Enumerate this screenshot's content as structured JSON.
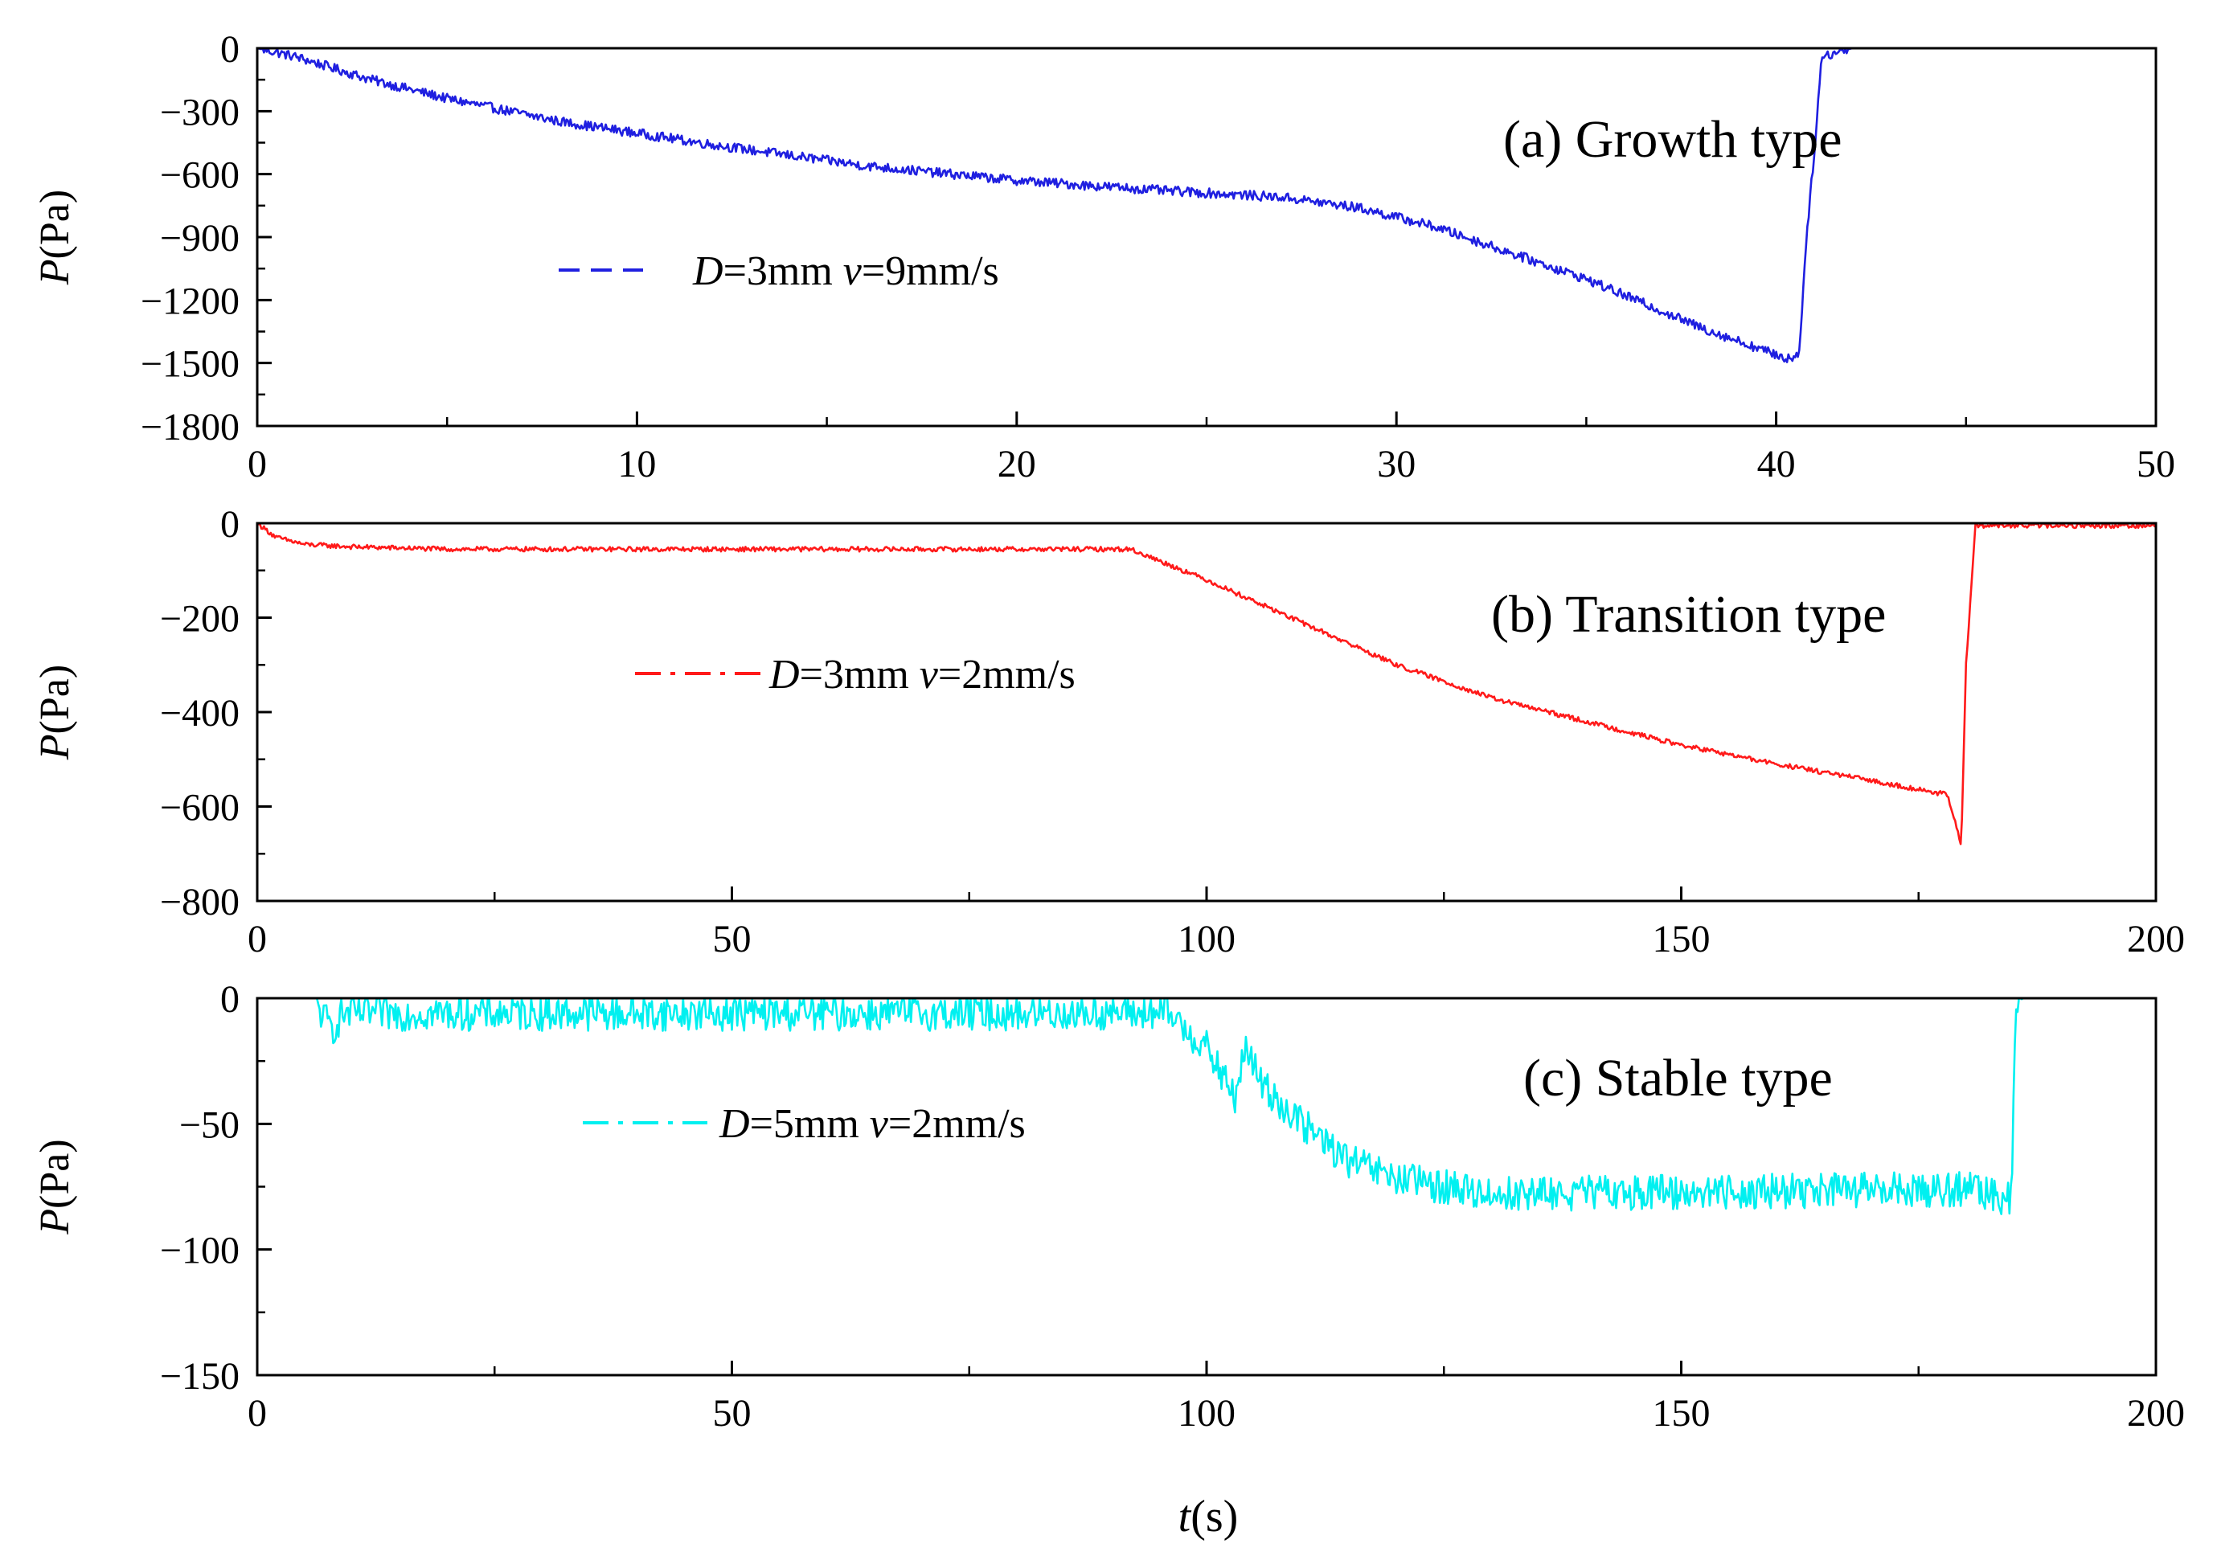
{
  "figure": {
    "xlabel_italic": "t",
    "xlabel_unit": "(s)"
  },
  "chart_data": [
    {
      "type": "line",
      "panel": "a",
      "title": "(a) Growth type",
      "xlabel": "",
      "ylabel_italic": "P",
      "ylabel_unit": "(Pa)",
      "xlim": [
        0,
        50
      ],
      "ylim": [
        -1800,
        0
      ],
      "xticks": [
        0,
        10,
        20,
        30,
        40,
        50
      ],
      "xticks_minor": [
        5,
        15,
        25,
        35,
        45
      ],
      "xtick_labels": [
        "0",
        "10",
        "20",
        "30",
        "40",
        "50"
      ],
      "yticks": [
        0,
        -300,
        -600,
        -900,
        -1200,
        -1500,
        -1800
      ],
      "ytick_labels": [
        "0",
        "−300",
        "−600",
        "−900",
        "−1200",
        "−1500",
        "−1800"
      ],
      "legend_placement": "left-middle",
      "series": [
        {
          "name": "D=3mm v=9mm/s",
          "legend_italic_1": "D",
          "legend_text_1": "=3mm ",
          "legend_italic_2": "v",
          "legend_text_2": "=9mm/s",
          "color": "#1f1fe0",
          "style": "dashed",
          "noise": 45,
          "x": [
            0,
            1,
            3,
            5,
            8,
            12,
            16,
            20,
            24,
            27,
            29,
            31,
            35,
            38,
            40.3,
            40.6,
            40.8,
            41.0,
            41.2,
            42,
            50
          ],
          "y": [
            0,
            -40,
            -150,
            -240,
            -350,
            -460,
            -560,
            -630,
            -680,
            -710,
            -760,
            -850,
            -1100,
            -1330,
            -1480,
            -1460,
            -900,
            -500,
            -40,
            0,
            0
          ]
        }
      ]
    },
    {
      "type": "line",
      "panel": "b",
      "title": "(b) Transition type",
      "xlabel": "",
      "ylabel_italic": "P",
      "ylabel_unit": "(Pa)",
      "xlim": [
        0,
        200
      ],
      "ylim": [
        -800,
        0
      ],
      "xticks": [
        0,
        50,
        100,
        150,
        200
      ],
      "xticks_minor": [
        25,
        75,
        125,
        175
      ],
      "xtick_labels": [
        "0",
        "50",
        "100",
        "150",
        "200"
      ],
      "yticks": [
        0,
        -200,
        -400,
        -600,
        -800
      ],
      "ytick_labels": [
        "0",
        "−200",
        "−400",
        "−600",
        "−800"
      ],
      "legend_placement": "left-middle",
      "series": [
        {
          "name": "D=3mm v=2mm/s",
          "legend_italic_1": "D",
          "legend_text_1": "=3mm ",
          "legend_italic_2": "v",
          "legend_text_2": "=2mm/s",
          "color": "#ff1a1a",
          "style": "dashdot",
          "noise": 10,
          "x": [
            0,
            2,
            5,
            10,
            20,
            40,
            60,
            80,
            92,
            100,
            110,
            120,
            130,
            140,
            150,
            160,
            170,
            178,
            179.5,
            180,
            181,
            200
          ],
          "y": [
            0,
            -30,
            -45,
            -50,
            -55,
            -55,
            -55,
            -55,
            -55,
            -120,
            -210,
            -300,
            -370,
            -420,
            -470,
            -510,
            -545,
            -575,
            -680,
            -300,
            -5,
            -5
          ]
        }
      ]
    },
    {
      "type": "line",
      "panel": "c",
      "title": "(c) Stable type",
      "xlabel": "t(s)",
      "ylabel_italic": "P",
      "ylabel_unit": "(Pa)",
      "xlim": [
        0,
        200
      ],
      "ylim": [
        -150,
        0
      ],
      "xticks": [
        0,
        50,
        100,
        150,
        200
      ],
      "xticks_minor": [
        25,
        75,
        125,
        175
      ],
      "xtick_labels": [
        "0",
        "50",
        "100",
        "150",
        "200"
      ],
      "yticks": [
        0,
        -50,
        -100,
        -150
      ],
      "ytick_labels": [
        "0",
        "−50",
        "−100",
        "−150"
      ],
      "legend_placement": "left-middle",
      "series": [
        {
          "name": "D=5mm v=2mm/s",
          "legend_italic_1": "D",
          "legend_text_1": "=5mm ",
          "legend_italic_2": "v",
          "legend_text_2": "=2mm/s",
          "color": "#00f0f0",
          "style": "dashdot",
          "noise": 14,
          "x": [
            0,
            6,
            7,
            8,
            9,
            12,
            30,
            60,
            90,
            96,
            100,
            103,
            104,
            106,
            110,
            115,
            120,
            130,
            150,
            180,
            184.8,
            185.2,
            186,
            200
          ],
          "y": [
            0,
            0,
            -8,
            -12,
            -6,
            -6,
            -6,
            -6,
            -6,
            -6,
            -20,
            -40,
            -20,
            -35,
            -50,
            -65,
            -72,
            -78,
            -77,
            -76,
            -80,
            -2,
            0,
            0
          ]
        }
      ]
    }
  ]
}
